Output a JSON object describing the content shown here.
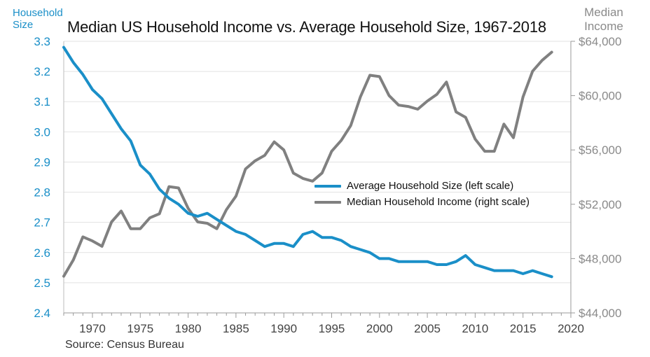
{
  "chart_data": {
    "type": "line",
    "title": "Median US Household Income vs. Average Household Size, 1967-2018",
    "source": "Source: Census Bureau",
    "left_axis_label": "Household Size",
    "right_axis_label": "Median Income",
    "xlim": [
      1967,
      2020
    ],
    "x_ticks": [
      1970,
      1975,
      1980,
      1985,
      1990,
      1995,
      2000,
      2005,
      2010,
      2015,
      2020
    ],
    "x_tick_labels": [
      "1970",
      "1975",
      "1980",
      "1985",
      "1990",
      "1995",
      "2000",
      "2005",
      "2010",
      "2015",
      "2020"
    ],
    "left_ylim": [
      2.4,
      3.3
    ],
    "left_ticks": [
      2.4,
      2.5,
      2.6,
      2.7,
      2.8,
      2.9,
      3.0,
      3.1,
      3.2,
      3.3
    ],
    "left_tick_labels": [
      "2.4",
      "2.5",
      "2.6",
      "2.7",
      "2.8",
      "2.9",
      "3.0",
      "3.1",
      "3.2",
      "3.3"
    ],
    "right_ylim": [
      44000,
      64000
    ],
    "right_ticks": [
      44000,
      48000,
      52000,
      56000,
      60000,
      64000
    ],
    "right_tick_labels": [
      "$44,000",
      "$48,000",
      "$52,000",
      "$56,000",
      "$60,000",
      "$64,000"
    ],
    "grid": "horizontal",
    "legend_position": "center-right",
    "series": [
      {
        "name": "Average Household Size (left scale)",
        "axis": "left",
        "color": "#1a8fc8",
        "x": [
          1967,
          1968,
          1969,
          1970,
          1971,
          1972,
          1973,
          1974,
          1975,
          1976,
          1977,
          1978,
          1979,
          1980,
          1981,
          1982,
          1983,
          1984,
          1985,
          1986,
          1987,
          1988,
          1989,
          1990,
          1991,
          1992,
          1993,
          1994,
          1995,
          1996,
          1997,
          1998,
          1999,
          2000,
          2001,
          2002,
          2003,
          2004,
          2005,
          2006,
          2007,
          2008,
          2009,
          2010,
          2011,
          2012,
          2013,
          2014,
          2015,
          2016,
          2017,
          2018
        ],
        "values": [
          3.28,
          3.23,
          3.19,
          3.14,
          3.11,
          3.06,
          3.01,
          2.97,
          2.89,
          2.86,
          2.81,
          2.78,
          2.76,
          2.73,
          2.72,
          2.73,
          2.71,
          2.69,
          2.67,
          2.66,
          2.64,
          2.62,
          2.63,
          2.63,
          2.62,
          2.66,
          2.67,
          2.65,
          2.65,
          2.64,
          2.62,
          2.61,
          2.6,
          2.58,
          2.58,
          2.57,
          2.57,
          2.57,
          2.57,
          2.56,
          2.56,
          2.57,
          2.59,
          2.56,
          2.55,
          2.54,
          2.54,
          2.54,
          2.53,
          2.54,
          2.53,
          2.52
        ]
      },
      {
        "name": "Median Household Income (right scale)",
        "axis": "right",
        "color": "#808080",
        "x": [
          1967,
          1968,
          1969,
          1970,
          1971,
          1972,
          1973,
          1974,
          1975,
          1976,
          1977,
          1978,
          1979,
          1980,
          1981,
          1982,
          1983,
          1984,
          1985,
          1986,
          1987,
          1988,
          1989,
          1990,
          1991,
          1992,
          1993,
          1994,
          1995,
          1996,
          1997,
          1998,
          1999,
          2000,
          2001,
          2002,
          2003,
          2004,
          2005,
          2006,
          2007,
          2008,
          2009,
          2010,
          2011,
          2012,
          2013,
          2014,
          2015,
          2016,
          2017,
          2018
        ],
        "values": [
          46700,
          47900,
          49600,
          49300,
          48900,
          50700,
          51500,
          50200,
          50200,
          51000,
          51300,
          53300,
          53200,
          51700,
          50700,
          50600,
          50200,
          51600,
          52600,
          54600,
          55200,
          55600,
          56600,
          56000,
          54300,
          53900,
          53700,
          54300,
          55900,
          56700,
          57800,
          59900,
          61500,
          61400,
          60000,
          59300,
          59200,
          59000,
          59600,
          60100,
          61000,
          58800,
          58400,
          56800,
          55900,
          55900,
          57900,
          56900,
          59900,
          61800,
          62600,
          63200
        ]
      }
    ]
  }
}
